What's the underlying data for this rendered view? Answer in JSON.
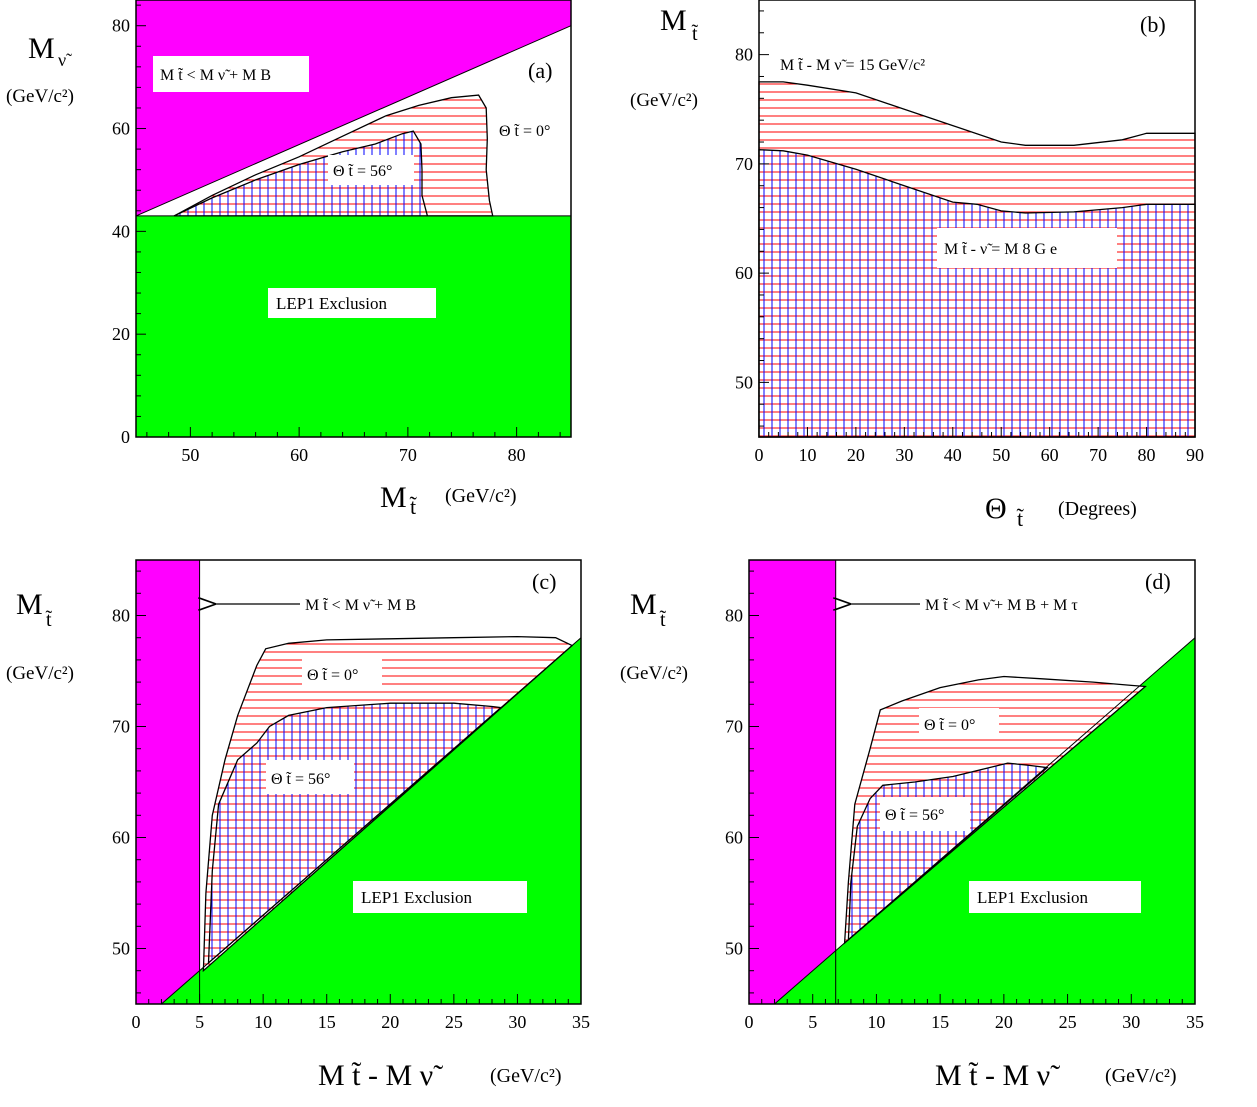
{
  "colors": {
    "magenta": "#ff00ff",
    "green": "#00ff00",
    "hatch_red": "#ff0000",
    "hatch_blue": "#0000ff",
    "frame": "#000000"
  },
  "chart_data": [
    {
      "panel": "(a)",
      "type": "area",
      "xlabel": "M t̃ (GeV/c²)",
      "ylabel": "M ν̃ (GeV/c²)",
      "xlim": [
        45,
        85
      ],
      "ylim": [
        0,
        85
      ],
      "xticks": [
        50,
        60,
        70,
        80
      ],
      "yticks": [
        0,
        20,
        40,
        60,
        80
      ],
      "regions": [
        {
          "name": "kinematic_forbidden",
          "label": "M_t̃ < M_ν̃ + M_B",
          "color": "magenta",
          "points": [
            [
              45,
              43
            ],
            [
              85,
              80
            ],
            [
              85,
              85
            ],
            [
              45,
              85
            ]
          ]
        },
        {
          "name": "lep1",
          "label": "LEP1 Exclusion",
          "color": "green",
          "points": [
            [
              45,
              0
            ],
            [
              85,
              0
            ],
            [
              85,
              43
            ],
            [
              45,
              43
            ]
          ]
        },
        {
          "name": "theta0",
          "label": "Θ_t̃ = 0°",
          "fill": "hatch-h",
          "points": [
            [
              48.5,
              43
            ],
            [
              52,
              47
            ],
            [
              56,
              51
            ],
            [
              60,
              54.5
            ],
            [
              64,
              58.5
            ],
            [
              68,
              62.5
            ],
            [
              71,
              64.5
            ],
            [
              74,
              66
            ],
            [
              76.5,
              66.5
            ],
            [
              77.2,
              64
            ],
            [
              77.3,
              58
            ],
            [
              77.2,
              52
            ],
            [
              77.5,
              46
            ],
            [
              77.8,
              43
            ]
          ]
        },
        {
          "name": "theta56",
          "label": "Θ_t̃ = 56°",
          "fill": "hatch-grid",
          "points": [
            [
              48.5,
              43
            ],
            [
              52,
              46.5
            ],
            [
              56,
              50
            ],
            [
              60,
              53
            ],
            [
              64,
              55.5
            ],
            [
              67,
              57
            ],
            [
              69.5,
              59
            ],
            [
              70.5,
              59.5
            ],
            [
              71.2,
              57
            ],
            [
              71.3,
              52
            ],
            [
              71.3,
              47
            ],
            [
              71.8,
              43
            ]
          ]
        }
      ]
    },
    {
      "panel": "(b)",
      "type": "area",
      "xlabel": "Θ t̃ (Degrees)",
      "ylabel": "M t̃ (GeV/c²)",
      "xlim": [
        0,
        90
      ],
      "ylim": [
        45,
        85
      ],
      "xticks": [
        0,
        10,
        20,
        30,
        40,
        50,
        60,
        70,
        80,
        90
      ],
      "yticks": [
        50,
        60,
        70,
        80
      ],
      "regions": [
        {
          "name": "dm15",
          "label": "M_t̃ - M_ν̃ = 15 GeV/c²",
          "fill": "hatch-h",
          "points": [
            [
              0,
              77.5
            ],
            [
              5,
              77.5
            ],
            [
              10,
              77.2
            ],
            [
              20,
              76.5
            ],
            [
              30,
              75
            ],
            [
              40,
              73.5
            ],
            [
              50,
              72
            ],
            [
              55,
              71.7
            ],
            [
              65,
              71.7
            ],
            [
              75,
              72.2
            ],
            [
              80,
              72.8
            ],
            [
              90,
              72.8
            ],
            [
              90,
              45
            ],
            [
              0,
              45
            ]
          ]
        },
        {
          "name": "dm8",
          "label": "M_t̃ - M_ν̃ = 8 GeV/c²",
          "fill": "hatch-grid",
          "points": [
            [
              0,
              71.3
            ],
            [
              5,
              71.2
            ],
            [
              10,
              70.8
            ],
            [
              20,
              69.5
            ],
            [
              30,
              68
            ],
            [
              40,
              66.5
            ],
            [
              45,
              66.3
            ],
            [
              50,
              65.7
            ],
            [
              55,
              65.5
            ],
            [
              65,
              65.6
            ],
            [
              75,
              66
            ],
            [
              80,
              66.3
            ],
            [
              90,
              66.3
            ],
            [
              90,
              45
            ],
            [
              0,
              45
            ]
          ]
        }
      ]
    },
    {
      "panel": "(c)",
      "type": "area",
      "xlabel": "M t̃ - M ν̃ (GeV/c²)",
      "ylabel": "M t̃ (GeV/c²)",
      "xlim": [
        0,
        35
      ],
      "ylim": [
        45,
        85
      ],
      "xticks": [
        0,
        5,
        10,
        15,
        20,
        25,
        30,
        35
      ],
      "yticks": [
        50,
        60,
        70,
        80
      ],
      "regions": [
        {
          "name": "kinematic_forbidden",
          "label": "M_t̃ < M_ν̃ + M_B",
          "color": "magenta",
          "points": [
            [
              0,
              45
            ],
            [
              5,
              45
            ],
            [
              5,
              85
            ],
            [
              0,
              85
            ]
          ]
        },
        {
          "name": "lep1",
          "label": "LEP1 Exclusion",
          "color": "green",
          "points": [
            [
              2,
              45
            ],
            [
              35,
              78
            ],
            [
              35,
              45
            ]
          ]
        },
        {
          "name": "theta0",
          "label": "Θ_t̃ = 0°",
          "fill": "hatch-h",
          "points": [
            [
              5.3,
              48
            ],
            [
              5.5,
              55
            ],
            [
              6,
              62
            ],
            [
              7,
              67
            ],
            [
              8,
              71
            ],
            [
              9.5,
              75.5
            ],
            [
              10.2,
              77
            ],
            [
              12,
              77.5
            ],
            [
              15,
              77.8
            ],
            [
              20,
              77.9
            ],
            [
              25,
              78
            ],
            [
              30,
              78.1
            ],
            [
              33,
              78
            ],
            [
              34.3,
              77.3
            ]
          ]
        },
        {
          "name": "theta56",
          "label": "Θ_t̃ = 56°",
          "fill": "hatch-grid",
          "points": [
            [
              5.7,
              48.7
            ],
            [
              6,
              57
            ],
            [
              6.5,
              63
            ],
            [
              8,
              67
            ],
            [
              9.5,
              68.5
            ],
            [
              10.5,
              70
            ],
            [
              12,
              71
            ],
            [
              15,
              71.7
            ],
            [
              20,
              72.1
            ],
            [
              25,
              72.1
            ],
            [
              28,
              71.8
            ],
            [
              28.7,
              71.7
            ]
          ]
        }
      ]
    },
    {
      "panel": "(d)",
      "type": "area",
      "xlabel": "M t̃ - M ν̃ (GeV/c²)",
      "ylabel": "M t̃ (GeV/c²)",
      "xlim": [
        0,
        35
      ],
      "ylim": [
        45,
        85
      ],
      "xticks": [
        0,
        5,
        10,
        15,
        20,
        25,
        30,
        35
      ],
      "yticks": [
        50,
        60,
        70,
        80
      ],
      "regions": [
        {
          "name": "kinematic_forbidden",
          "label": "M_t̃ < M_ν̃ + M_B + M_τ",
          "color": "magenta",
          "points": [
            [
              0,
              45
            ],
            [
              6.8,
              45
            ],
            [
              6.8,
              85
            ],
            [
              0,
              85
            ]
          ]
        },
        {
          "name": "lep1",
          "label": "LEP1 Exclusion",
          "color": "green",
          "points": [
            [
              2,
              45
            ],
            [
              35,
              78
            ],
            [
              35,
              45
            ]
          ]
        },
        {
          "name": "theta0",
          "label": "Θ_t̃ = 0°",
          "fill": "hatch-h",
          "points": [
            [
              7.5,
              50.5
            ],
            [
              7.8,
              56
            ],
            [
              8.3,
              63
            ],
            [
              9.5,
              68
            ],
            [
              10.3,
              71.5
            ],
            [
              12,
              72.3
            ],
            [
              15,
              73.5
            ],
            [
              18,
              74.2
            ],
            [
              20,
              74.5
            ],
            [
              23,
              74.3
            ],
            [
              27,
              74
            ],
            [
              30,
              73.7
            ],
            [
              31.1,
              73.6
            ]
          ]
        },
        {
          "name": "theta56",
          "label": "Θ_t̃ = 56°",
          "fill": "hatch-grid",
          "points": [
            [
              7.8,
              50.8
            ],
            [
              8,
              56
            ],
            [
              8.5,
              61
            ],
            [
              9.5,
              63.5
            ],
            [
              10.5,
              64.7
            ],
            [
              13,
              65
            ],
            [
              16,
              65.5
            ],
            [
              18.5,
              66.2
            ],
            [
              20.3,
              66.7
            ],
            [
              22,
              66.5
            ],
            [
              23.4,
              66.3
            ]
          ]
        }
      ]
    }
  ],
  "panels": {
    "a": {
      "tag": "(a)",
      "ylabel_main": "M",
      "ylabel_sub": "ν̃",
      "ylabel_unit": "(GeV/c²)",
      "xlabel_main": "M",
      "xlabel_sub": "t̃",
      "xlabel_unit": "(GeV/c²)",
      "box_label": "M t̃ < M ν̃ + M B",
      "lep_label": "LEP1 Exclusion",
      "theta0_label": "Θ t̃ = 0°",
      "theta56_label": "Θ t̃ = 56°"
    },
    "b": {
      "tag": "(b)",
      "ylabel_main": "M",
      "ylabel_sub": "t̃",
      "ylabel_unit": "(GeV/c²)",
      "xlabel_main": "Θ",
      "xlabel_sub": "t̃",
      "xlabel_unit": "(Degrees)",
      "curve15_label": "M t̃ - M ν̃ = 15 GeV/c²",
      "curve8_label": "M t̃ - ν̃ = M 8 G e"
    },
    "c": {
      "tag": "(c)",
      "ylabel_main": "M",
      "ylabel_sub": "t̃",
      "ylabel_unit": "(GeV/c²)",
      "xlabel_main": "M t̃ - M ν̃",
      "xlabel_unit": "(GeV/c²)",
      "arrow_label": "M t̃ < M ν̃ + M B",
      "lep_label": "LEP1 Exclusion",
      "theta0_label": "Θ t̃ = 0°",
      "theta56_label": "Θ t̃ = 56°"
    },
    "d": {
      "tag": "(d)",
      "ylabel_main": "M",
      "ylabel_sub": "t̃",
      "ylabel_unit": "(GeV/c²)",
      "xlabel_main": "M t̃ - M ν̃",
      "xlabel_unit": "(GeV/c²)",
      "arrow_label": "M t̃ < M ν̃ + M B + M τ",
      "lep_label": "LEP1 Exclusion",
      "theta0_label": "Θ t̃ = 0°",
      "theta56_label": "Θ t̃ = 56°"
    }
  }
}
